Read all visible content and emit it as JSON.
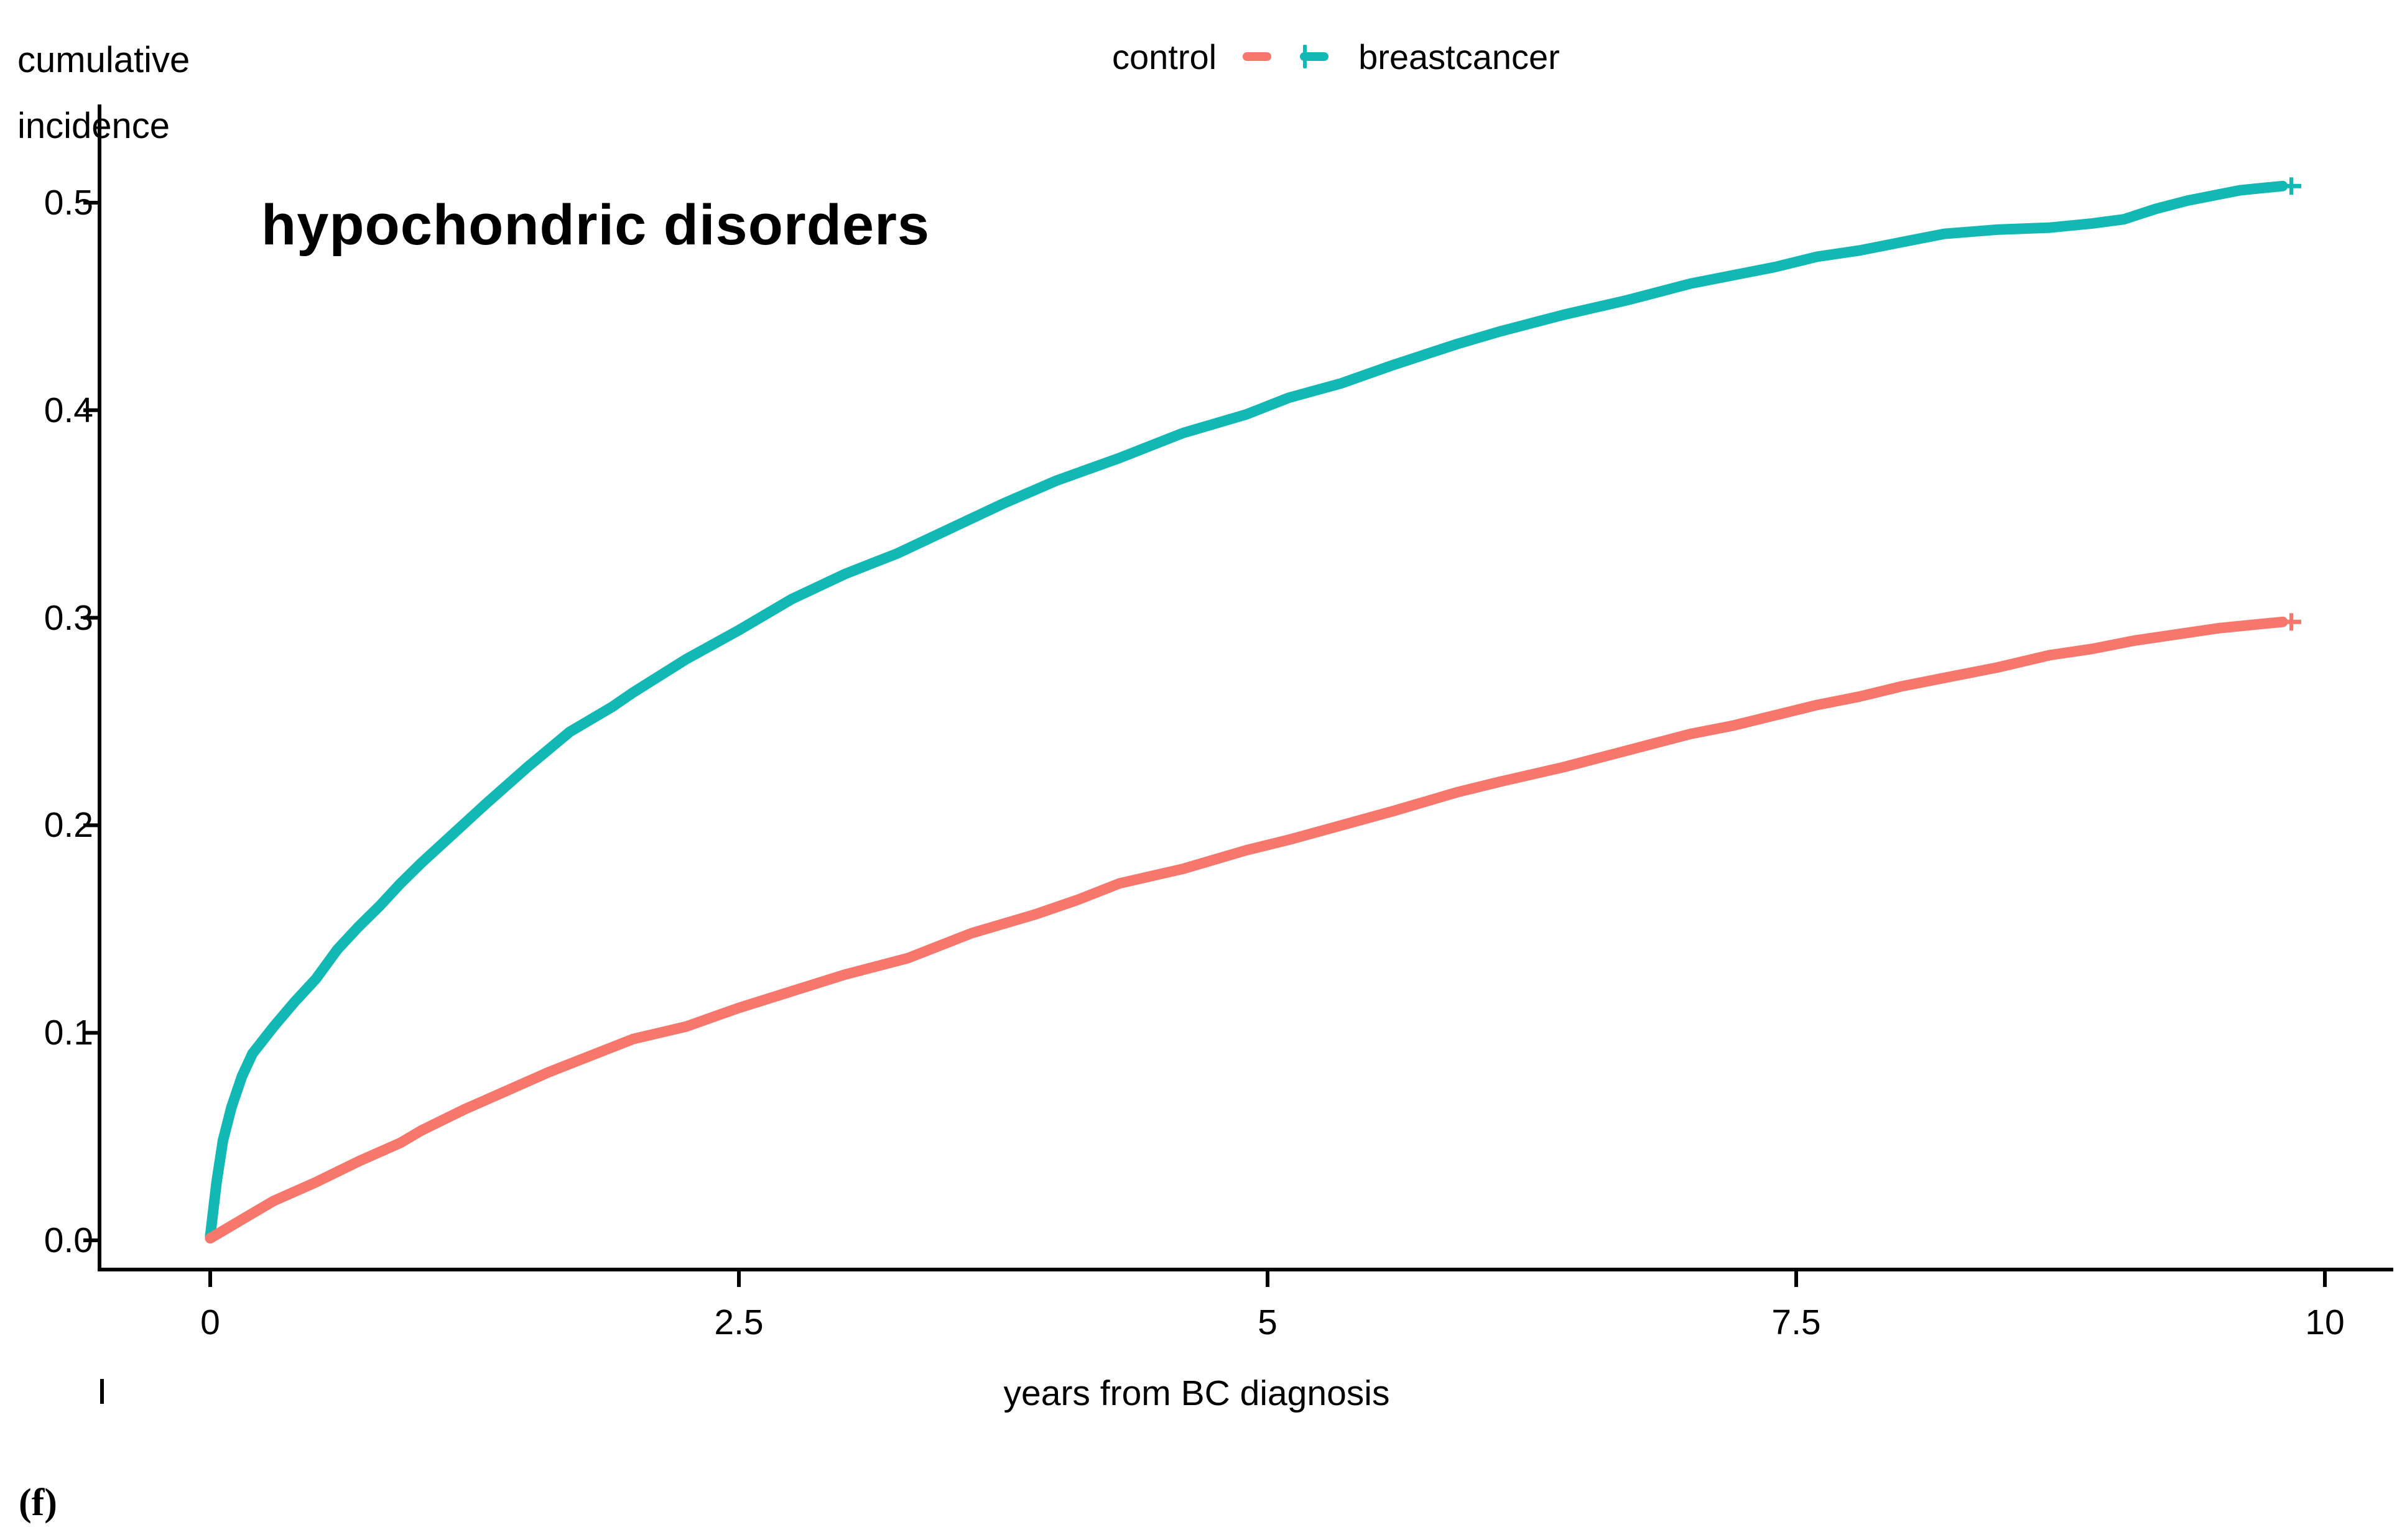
{
  "figure_label": "(f)",
  "title": "hypochondric disorders",
  "y_axis": {
    "label": "cumulative\nincidence",
    "tick_labels": [
      "0.0",
      "0.1",
      "0.2",
      "0.3",
      "0.4",
      "0.5"
    ],
    "tick_values": [
      0.0,
      0.1,
      0.2,
      0.3,
      0.4,
      0.5
    ]
  },
  "x_axis": {
    "label": "years from BC diagnosis",
    "tick_labels": [
      "0",
      "2.5",
      "5",
      "7.5",
      "10"
    ],
    "tick_values": [
      0,
      2.5,
      5,
      7.5,
      10
    ]
  },
  "legend": {
    "control": {
      "label": "control",
      "color": "#F8776C"
    },
    "breastcancer": {
      "label": "breastcancer",
      "color": "#12B9B4"
    }
  },
  "chart_data": {
    "type": "line",
    "title": "hypochondric disorders",
    "xlabel": "years from BC diagnosis",
    "ylabel": "cumulative incidence",
    "xlim": [
      0,
      10
    ],
    "ylim": [
      0.0,
      0.52
    ],
    "x_ticks": [
      0,
      2.5,
      5,
      7.5,
      10
    ],
    "y_ticks": [
      0.0,
      0.1,
      0.2,
      0.3,
      0.4,
      0.5
    ],
    "grid": false,
    "legend_position": "top-center",
    "curve_style": "kaplan-meier cumulative incidence, censor tick at end of each curve",
    "series": [
      {
        "name": "breastcancer",
        "color": "#12B9B4",
        "points": [
          [
            0.0,
            0.002
          ],
          [
            0.03,
            0.028
          ],
          [
            0.06,
            0.048
          ],
          [
            0.1,
            0.064
          ],
          [
            0.15,
            0.079
          ],
          [
            0.2,
            0.09
          ],
          [
            0.3,
            0.103
          ],
          [
            0.4,
            0.115
          ],
          [
            0.5,
            0.126
          ],
          [
            0.6,
            0.14
          ],
          [
            0.7,
            0.151
          ],
          [
            0.8,
            0.161
          ],
          [
            0.9,
            0.172
          ],
          [
            1.0,
            0.182
          ],
          [
            1.15,
            0.196
          ],
          [
            1.3,
            0.21
          ],
          [
            1.5,
            0.228
          ],
          [
            1.7,
            0.245
          ],
          [
            1.9,
            0.257
          ],
          [
            2.0,
            0.264
          ],
          [
            2.25,
            0.28
          ],
          [
            2.5,
            0.294
          ],
          [
            2.75,
            0.309
          ],
          [
            3.0,
            0.321
          ],
          [
            3.25,
            0.331
          ],
          [
            3.5,
            0.343
          ],
          [
            3.75,
            0.355
          ],
          [
            4.0,
            0.366
          ],
          [
            4.3,
            0.377
          ],
          [
            4.6,
            0.389
          ],
          [
            4.9,
            0.398
          ],
          [
            5.1,
            0.406
          ],
          [
            5.35,
            0.413
          ],
          [
            5.6,
            0.422
          ],
          [
            5.9,
            0.432
          ],
          [
            6.1,
            0.438
          ],
          [
            6.4,
            0.446
          ],
          [
            6.7,
            0.453
          ],
          [
            7.0,
            0.461
          ],
          [
            7.2,
            0.465
          ],
          [
            7.4,
            0.469
          ],
          [
            7.6,
            0.474
          ],
          [
            7.8,
            0.477
          ],
          [
            8.0,
            0.481
          ],
          [
            8.2,
            0.485
          ],
          [
            8.45,
            0.487
          ],
          [
            8.7,
            0.488
          ],
          [
            8.9,
            0.49
          ],
          [
            9.05,
            0.492
          ],
          [
            9.2,
            0.497
          ],
          [
            9.35,
            0.501
          ],
          [
            9.5,
            0.504
          ],
          [
            9.6,
            0.506
          ],
          [
            9.7,
            0.507
          ],
          [
            9.8,
            0.508
          ]
        ]
      },
      {
        "name": "control",
        "color": "#F8776C",
        "points": [
          [
            0.0,
            0.001
          ],
          [
            0.15,
            0.01
          ],
          [
            0.3,
            0.019
          ],
          [
            0.5,
            0.028
          ],
          [
            0.7,
            0.038
          ],
          [
            0.9,
            0.047
          ],
          [
            1.0,
            0.053
          ],
          [
            1.2,
            0.063
          ],
          [
            1.4,
            0.072
          ],
          [
            1.6,
            0.081
          ],
          [
            1.8,
            0.089
          ],
          [
            2.0,
            0.097
          ],
          [
            2.25,
            0.103
          ],
          [
            2.5,
            0.112
          ],
          [
            2.75,
            0.12
          ],
          [
            3.0,
            0.128
          ],
          [
            3.3,
            0.136
          ],
          [
            3.6,
            0.148
          ],
          [
            3.9,
            0.157
          ],
          [
            4.1,
            0.164
          ],
          [
            4.3,
            0.172
          ],
          [
            4.6,
            0.179
          ],
          [
            4.9,
            0.188
          ],
          [
            5.1,
            0.193
          ],
          [
            5.35,
            0.2
          ],
          [
            5.6,
            0.207
          ],
          [
            5.9,
            0.216
          ],
          [
            6.1,
            0.221
          ],
          [
            6.4,
            0.228
          ],
          [
            6.7,
            0.236
          ],
          [
            7.0,
            0.244
          ],
          [
            7.2,
            0.248
          ],
          [
            7.4,
            0.253
          ],
          [
            7.6,
            0.258
          ],
          [
            7.8,
            0.262
          ],
          [
            8.0,
            0.267
          ],
          [
            8.2,
            0.271
          ],
          [
            8.45,
            0.276
          ],
          [
            8.7,
            0.282
          ],
          [
            8.9,
            0.285
          ],
          [
            9.1,
            0.289
          ],
          [
            9.3,
            0.292
          ],
          [
            9.5,
            0.295
          ],
          [
            9.7,
            0.297
          ],
          [
            9.8,
            0.298
          ]
        ]
      }
    ]
  }
}
